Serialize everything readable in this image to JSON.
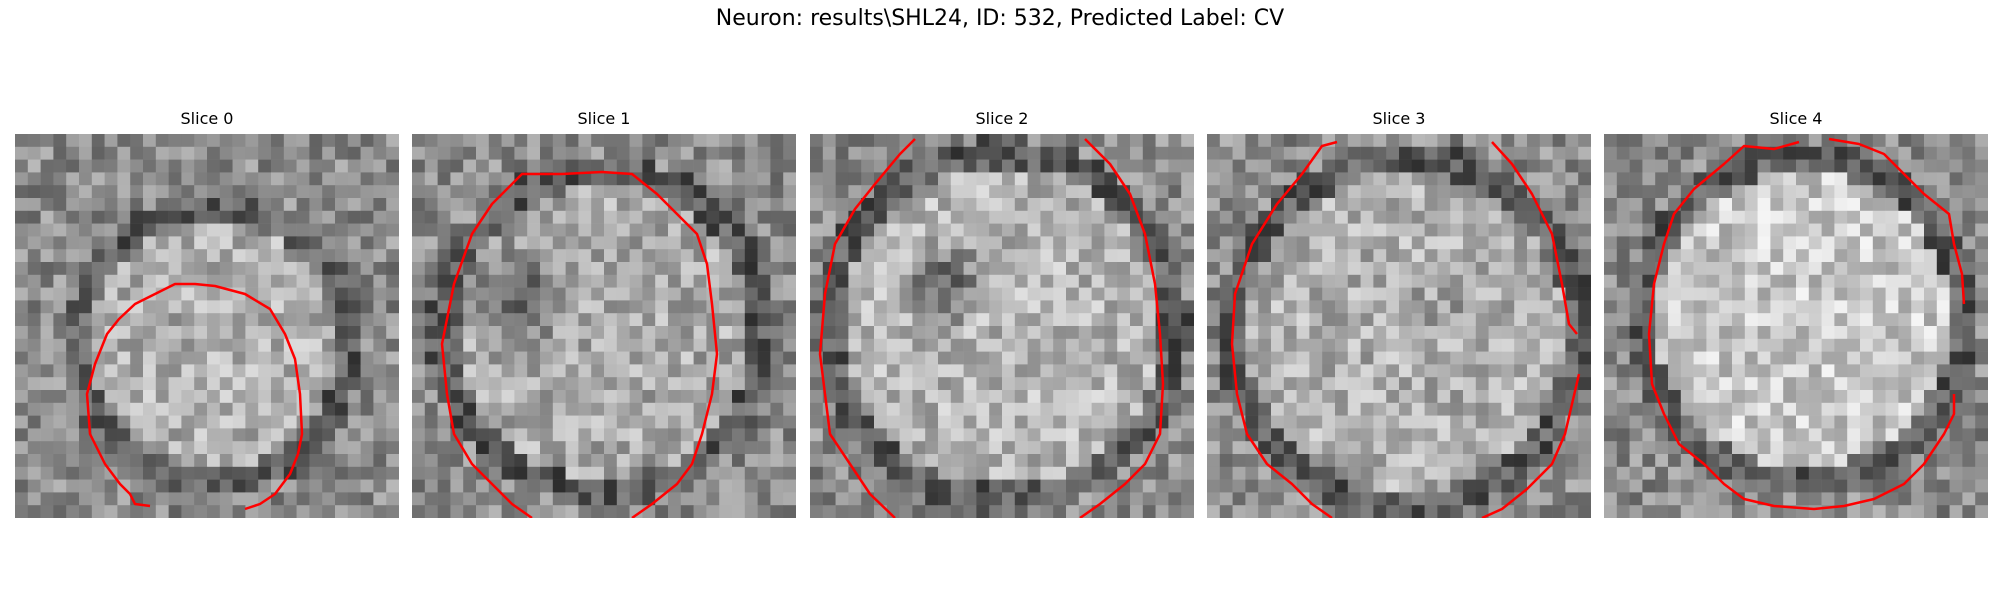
{
  "title": "Neuron: results\\SHL24, ID: 532, Predicted Label: CV",
  "outline_color": "#ff0000",
  "panels": [
    {
      "label": "Slice 0"
    },
    {
      "label": "Slice 1"
    },
    {
      "label": "Slice 2"
    },
    {
      "label": "Slice 3"
    },
    {
      "label": "Slice 4"
    }
  ]
}
